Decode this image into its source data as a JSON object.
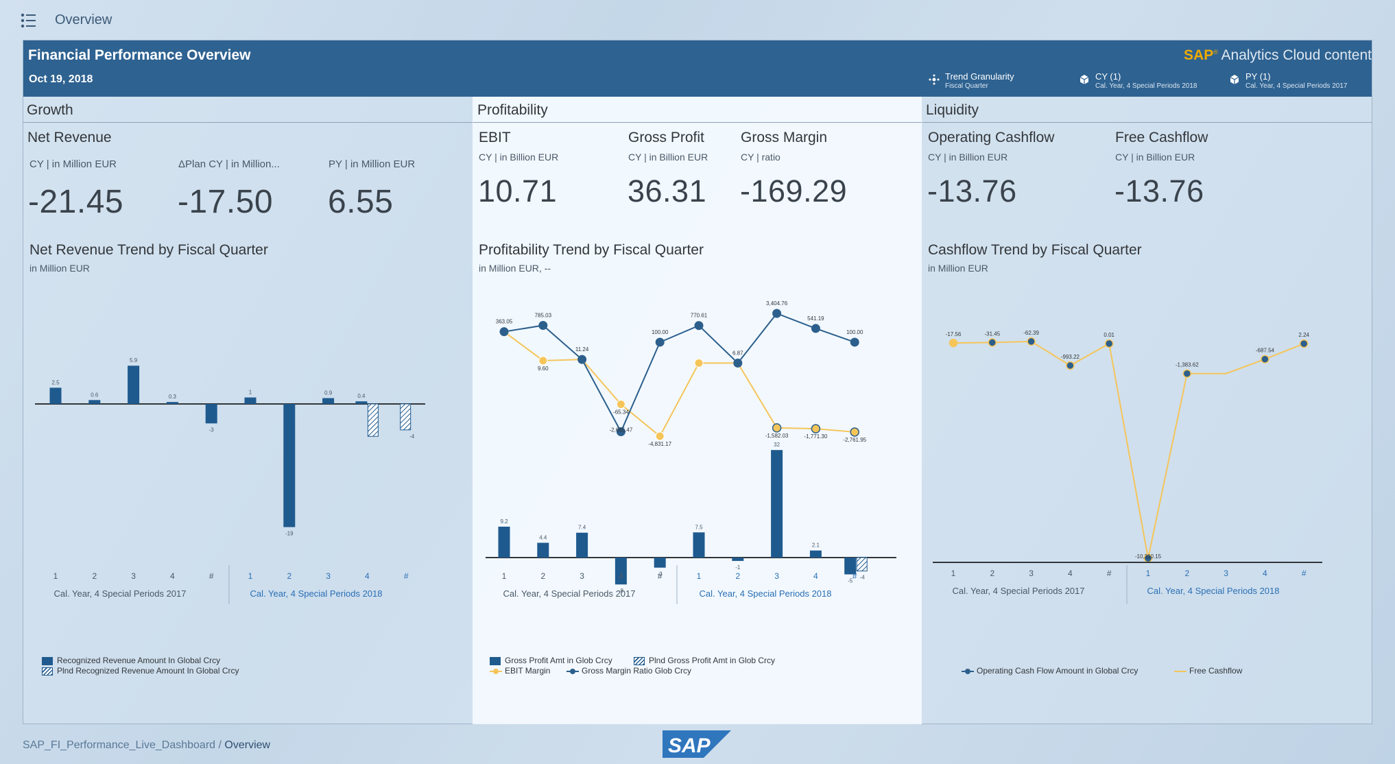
{
  "topbar": {
    "title": "Overview"
  },
  "header": {
    "title": "Financial Performance Overview",
    "date": "Oct 19, 2018",
    "brand_sap": "SAP",
    "brand_rest": "Analytics Cloud content",
    "filters": [
      {
        "label": "Trend Granularity",
        "sub": "Fiscal Quarter"
      },
      {
        "label": "CY (1)",
        "sub": "Cal. Year, 4 Special Periods 2018"
      },
      {
        "label": "PY (1)",
        "sub": "Cal. Year, 4 Special Periods 2017"
      }
    ]
  },
  "growth": {
    "title": "Growth",
    "kpi_title": "Net Revenue",
    "kpis": [
      {
        "label": "CY | in Million EUR",
        "value": "-21.45"
      },
      {
        "label": "ΔPlan CY | in Million...",
        "value": "-17.50"
      },
      {
        "label": "PY | in Million EUR",
        "value": "6.55"
      }
    ],
    "chart_title": "Net Revenue Trend by Fiscal Quarter",
    "chart_sub": "in Million EUR",
    "legend": [
      "Recognized Revenue Amount In Global Crcy",
      "Plnd Recognized Revenue Amount In Global Crcy"
    ]
  },
  "profitability": {
    "title": "Profitability",
    "kpis": [
      {
        "title": "EBIT",
        "label": "CY | in Billion EUR",
        "value": "10.71"
      },
      {
        "title": "Gross Profit",
        "label": "CY | in Billion EUR",
        "value": "36.31"
      },
      {
        "title": "Gross Margin",
        "label": "CY | ratio",
        "value": "-169.29"
      }
    ],
    "chart_title": "Profitability Trend by  Fiscal Quarter",
    "chart_sub": "in Million EUR, --",
    "legend": [
      "Gross Profit Amt in Glob Crcy",
      "Plnd Gross Profit Amt in Glob Crcy",
      "EBIT Margin",
      "Gross Margin Ratio Glob Crcy"
    ]
  },
  "liquidity": {
    "title": "Liquidity",
    "kpis": [
      {
        "title": "Operating Cashflow",
        "label": "CY | in Billion EUR",
        "value": "-13.76"
      },
      {
        "title": "Free Cashflow",
        "label": "CY | in Billion EUR",
        "value": "-13.76"
      }
    ],
    "chart_title": "Cashflow Trend by  Fiscal Quarter",
    "chart_sub": "in Million EUR",
    "legend": [
      "Operating Cash Flow Amount in Global Crcy",
      "Free Cashflow"
    ]
  },
  "chart_data": [
    {
      "type": "bar",
      "title": "Net Revenue Trend by Fiscal Quarter",
      "categories": [
        "1",
        "2",
        "3",
        "4",
        "#",
        "1",
        "2",
        "3",
        "4",
        "#"
      ],
      "groups": [
        "Cal. Year, 4 Special Periods 2017",
        "Cal. Year, 4 Special Periods 2018"
      ],
      "series": [
        {
          "name": "Recognized Revenue Amount In Global Crcy",
          "values": [
            2.5,
            0.6,
            5.9,
            0.3,
            -3,
            1,
            -19,
            0.9,
            0.4,
            null
          ],
          "labels": [
            "2.5",
            "0.6",
            "5.9",
            "0.3",
            "-3",
            "1",
            "-19",
            "0.9",
            "0.4",
            ""
          ],
          "color": "#1f5a8e"
        },
        {
          "name": "Plnd Recognized Revenue Amount In Global Crcy",
          "values": [
            null,
            null,
            null,
            null,
            null,
            null,
            null,
            null,
            -5,
            -4
          ],
          "labels": [
            "",
            "",
            "",
            "",
            "",
            "",
            "",
            "",
            "-5",
            "-4"
          ],
          "color": "#1f5a8e"
        }
      ]
    },
    {
      "type": "line",
      "title": "Profitability Trend by  Fiscal Quarter",
      "categories": [
        "1",
        "2",
        "3",
        "4",
        "#",
        "1",
        "2",
        "3",
        "4",
        "#"
      ],
      "groups": [
        "Cal. Year, 4 Special Periods 2017",
        "Cal. Year, 4 Special Periods 2018"
      ],
      "series": [
        {
          "name": "Gross Margin Ratio Glob Crcy",
          "color": "#2c5f8c",
          "values": [
            363.05,
            785.03,
            11.24,
            -2665.47,
            100,
            770.61,
            6.87,
            3404.76,
            541.19,
            100
          ],
          "labels": [
            "363.05",
            "785.03",
            "11.24",
            "-2,665.47",
            "100.00",
            "770.61",
            "6.87",
            "3,404.76",
            "541.19",
            "100.00"
          ]
        },
        {
          "name": "EBIT Margin",
          "color": "#f5c55a",
          "values": [
            363.05,
            9.6,
            11.24,
            -65.34,
            -4831.17,
            6.87,
            6.87,
            -1582.03,
            -1771.3,
            -2761.95
          ],
          "labels": [
            "",
            "9.60",
            "",
            "-65.34",
            "-4,831.17",
            "",
            "",
            "-1,582.03",
            "-1,771.30",
            "-2,761.95"
          ]
        }
      ]
    },
    {
      "type": "bar",
      "title": "Profitability Trend by  Fiscal Quarter",
      "categories": [
        "1",
        "2",
        "3",
        "4",
        "#",
        "1",
        "2",
        "3",
        "4",
        "#"
      ],
      "series": [
        {
          "name": "Gross Profit Amt in Glob Crcy",
          "values": [
            9.2,
            4.4,
            7.4,
            -8,
            -3,
            7.5,
            -1,
            32,
            2.1,
            -5
          ],
          "labels": [
            "9.2",
            "4.4",
            "7.4",
            "-8",
            "-3",
            "7.5",
            "-1",
            "32",
            "2.1",
            "-5"
          ],
          "color": "#1f5a8e"
        },
        {
          "name": "Plnd Gross Profit Amt in Glob Crcy",
          "values": [
            null,
            null,
            null,
            null,
            null,
            null,
            null,
            null,
            null,
            -4
          ],
          "labels": [
            "",
            "",
            "",
            "",
            "",
            "",
            "",
            "",
            "",
            "-4"
          ],
          "color": "#1f5a8e"
        }
      ]
    },
    {
      "type": "line",
      "title": "Cashflow Trend by  Fiscal Quarter",
      "categories": [
        "1",
        "2",
        "3",
        "4",
        "#",
        "1",
        "2",
        "3",
        "4",
        "#"
      ],
      "groups": [
        "Cal. Year, 4 Special Periods 2017",
        "Cal. Year, 4 Special Periods 2018"
      ],
      "series": [
        {
          "name": "Operating Cash Flow Amount in Global Crcy",
          "color": "#2c5f8c",
          "values": [
            -17.56,
            -31.45,
            -62.39,
            -993.22,
            0.01,
            -10310.15,
            -1383.62,
            -1383.62,
            -687.54,
            2.24
          ],
          "labels": [
            "-17.56",
            "-31.45",
            "-62.39",
            "-993.22",
            "0.01",
            "-10,310.15",
            "-1,383.62",
            "",
            "-687.54",
            "2.24"
          ]
        },
        {
          "name": "Free Cashflow",
          "color": "#f5c55a",
          "values": [
            -17.56,
            -31.45,
            -62.39,
            -993.22,
            0.01,
            -10310.15,
            -1383.62,
            -1383.62,
            -687.54,
            2.24
          ]
        }
      ]
    }
  ],
  "footer": {
    "path": "SAP_FI_Performance_Live_Dashboard",
    "separator": "/",
    "current": "Overview",
    "logo": "SAP"
  }
}
